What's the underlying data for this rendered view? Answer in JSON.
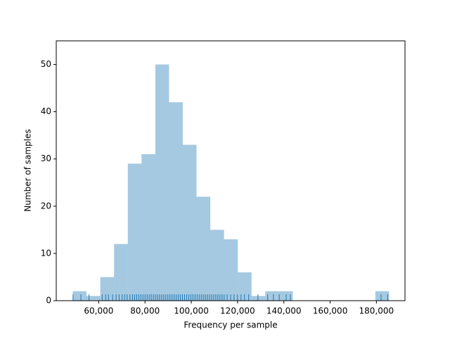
{
  "chart_data": {
    "type": "histogram",
    "xlabel": "Frequency per sample",
    "ylabel": "Number of samples",
    "bins": [
      48800,
      54742,
      60684,
      66626,
      72568,
      78510,
      84452,
      90394,
      96336,
      102278,
      108220,
      114162,
      120104,
      126046,
      131988,
      137930,
      143872,
      149814,
      155756,
      161698,
      167640,
      173582,
      179524,
      185466
    ],
    "values": [
      2,
      1,
      5,
      12,
      29,
      31,
      50,
      42,
      33,
      22,
      15,
      13,
      6,
      1,
      2,
      2,
      0,
      0,
      0,
      0,
      0,
      0,
      2
    ],
    "color": "#1f77b4",
    "rug": [
      48900,
      52300,
      55800,
      61500,
      63000,
      64200,
      66000,
      67500,
      68800,
      70100,
      71200,
      72300,
      73500,
      74600,
      75500,
      76400,
      77300,
      78200,
      79100,
      80000,
      80900,
      81800,
      82700,
      83600,
      84500,
      85400,
      86300,
      87200,
      88100,
      89000,
      89900,
      90800,
      91700,
      92600,
      93500,
      94400,
      95300,
      96200,
      97100,
      98000,
      98900,
      99800,
      100700,
      101600,
      102500,
      103400,
      104300,
      105200,
      106100,
      107000,
      107900,
      108800,
      109700,
      110600,
      111500,
      112400,
      113300,
      114200,
      115500,
      117000,
      118500,
      120000,
      121500,
      123000,
      124800,
      128800,
      133000,
      135500,
      138000,
      141000,
      142800,
      182000,
      184900
    ],
    "xlim": [
      41650,
      192350
    ],
    "xticks": [
      {
        "value": 60000,
        "label": "60,000"
      },
      {
        "value": 80000,
        "label": "80,000"
      },
      {
        "value": 100000,
        "label": "100,000"
      },
      {
        "value": 120000,
        "label": "120,000"
      },
      {
        "value": 140000,
        "label": "140,000"
      },
      {
        "value": 160000,
        "label": "160,000"
      },
      {
        "value": 180000,
        "label": "180,000"
      }
    ],
    "ylim": [
      0,
      55
    ],
    "yticks": [
      0,
      10,
      20,
      30,
      40,
      50
    ]
  }
}
